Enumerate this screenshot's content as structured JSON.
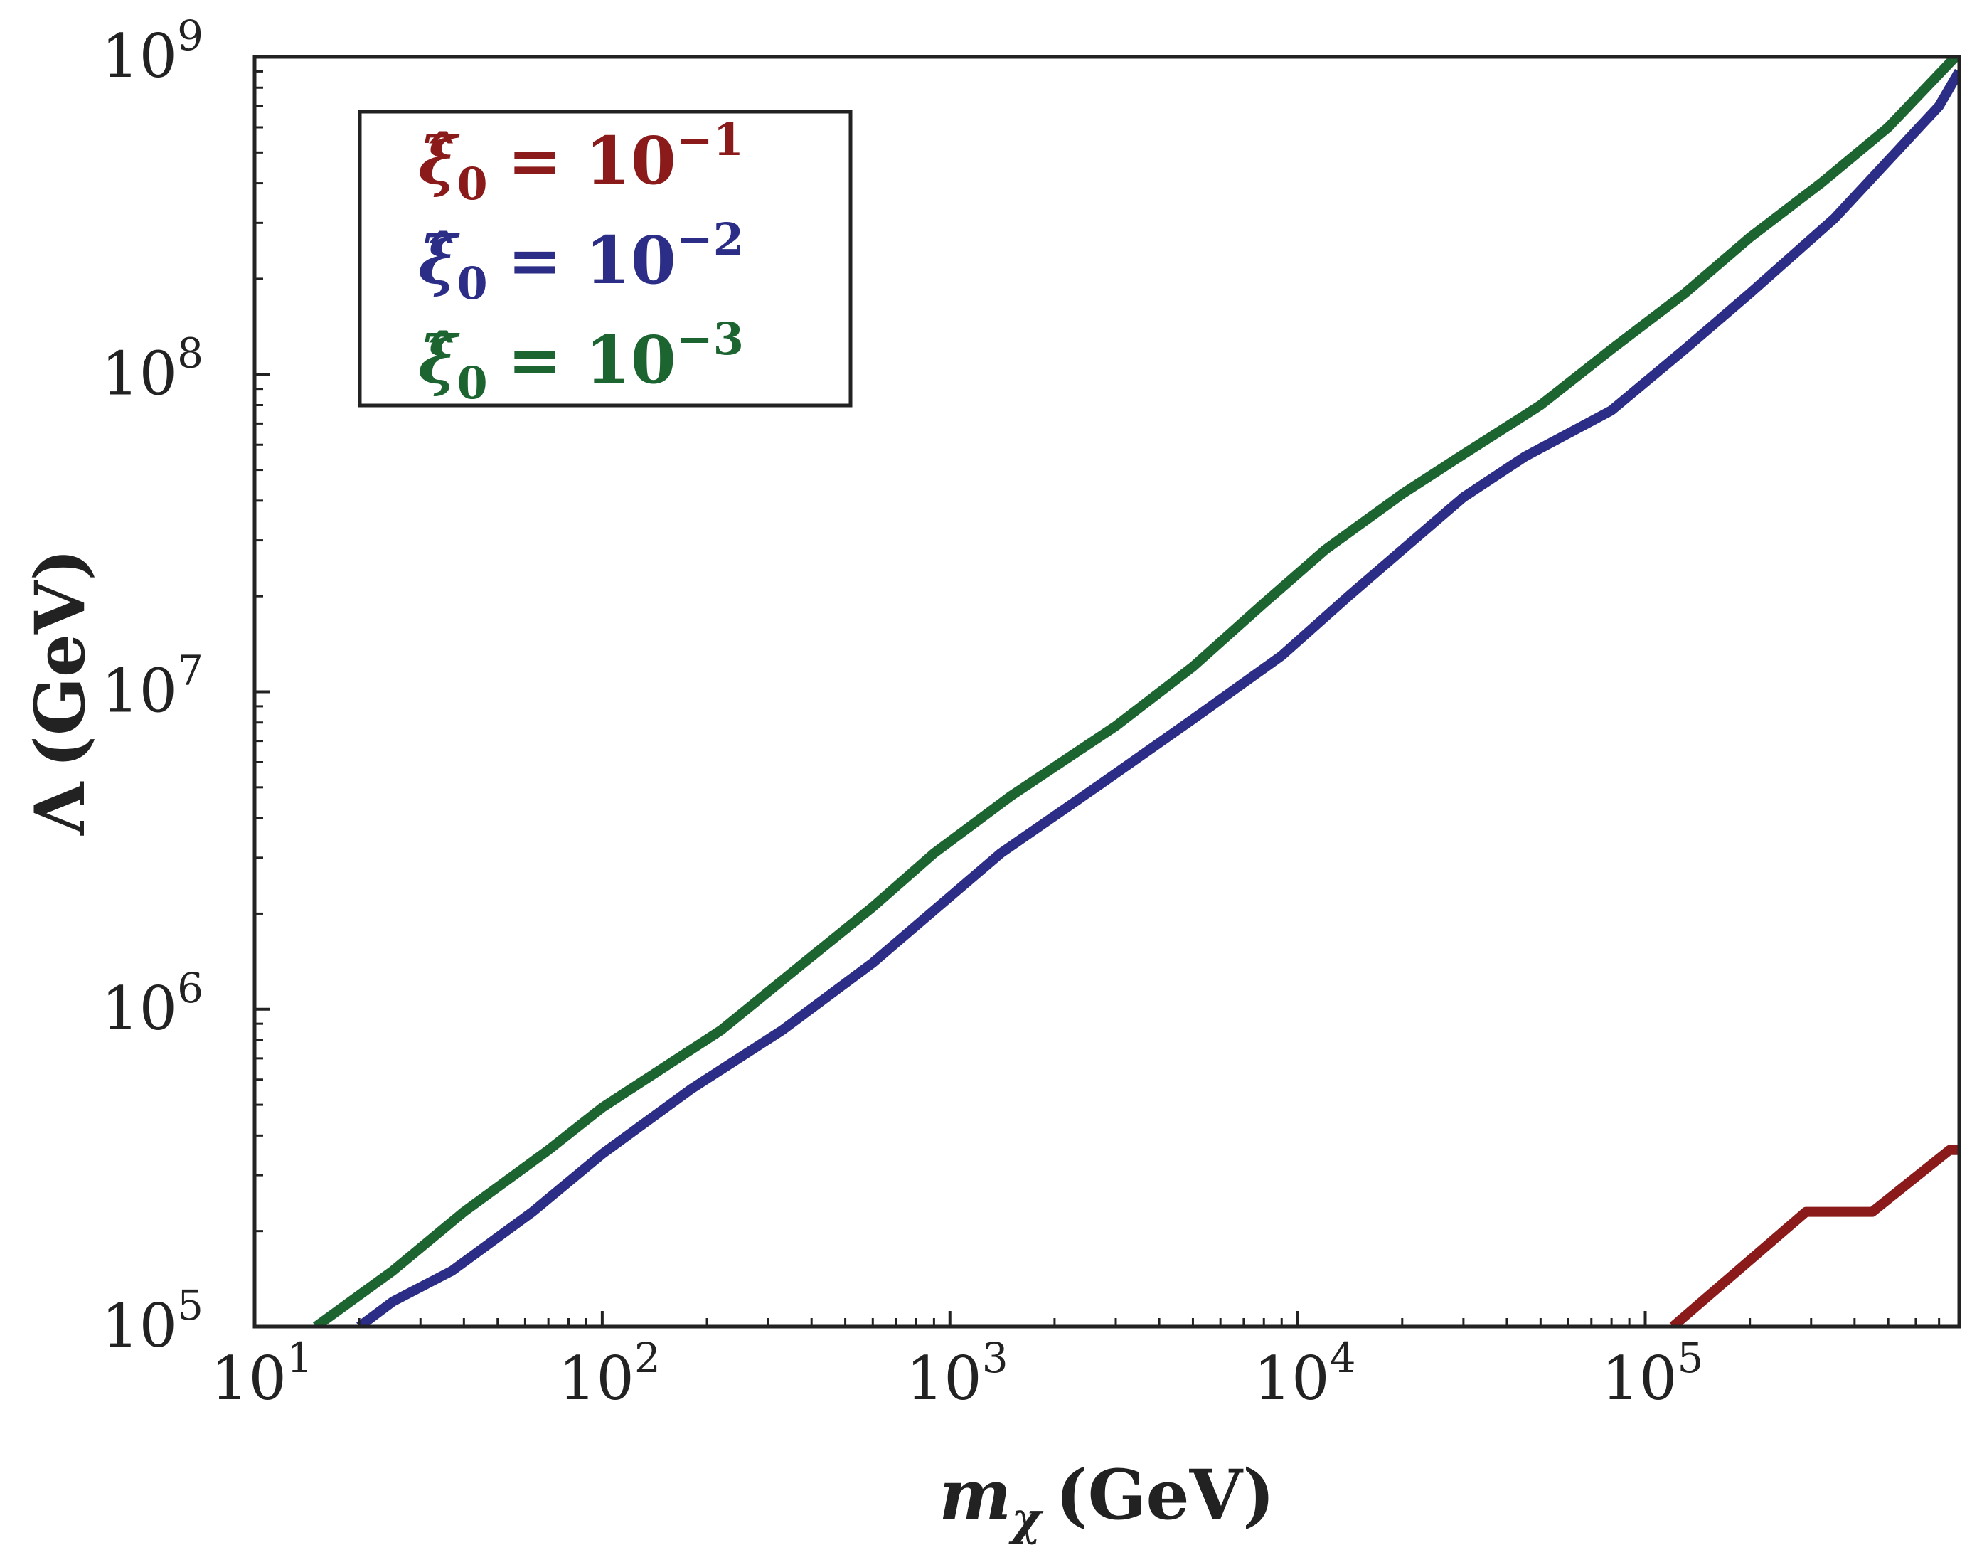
{
  "chart_data": {
    "type": "line",
    "xscale": "log",
    "yscale": "log",
    "xlim": [
      10,
      800000
    ],
    "ylim": [
      100000,
      1000000000
    ],
    "xlabel": {
      "var": "m",
      "sub": "χ",
      "unit": "(GeV)"
    },
    "ylabel": {
      "var": "Λ",
      "unit": "(GeV)"
    },
    "x_ticks": [
      {
        "base": "10",
        "exp": "1",
        "value": 10
      },
      {
        "base": "10",
        "exp": "2",
        "value": 100
      },
      {
        "base": "10",
        "exp": "3",
        "value": 1000
      },
      {
        "base": "10",
        "exp": "4",
        "value": 10000
      },
      {
        "base": "10",
        "exp": "5",
        "value": 100000
      }
    ],
    "y_ticks": [
      {
        "base": "10",
        "exp": "5",
        "value": 100000
      },
      {
        "base": "10",
        "exp": "6",
        "value": 1000000
      },
      {
        "base": "10",
        "exp": "7",
        "value": 10000000
      },
      {
        "base": "10",
        "exp": "8",
        "value": 100000000
      },
      {
        "base": "10",
        "exp": "9",
        "value": 1000000000
      }
    ],
    "legend_position": "top-left",
    "series": [
      {
        "name": "xi0_1e-1",
        "label": {
          "symbol": "ξ̂",
          "sub": "0",
          "rel": "= 10",
          "exp": "−1"
        },
        "color": "#8b1a1a",
        "x": [
          120000,
          290000,
          450000,
          750000,
          800000
        ],
        "y": [
          100000,
          230000,
          230000,
          360000,
          360000
        ]
      },
      {
        "name": "xi0_1e-2",
        "label": {
          "symbol": "ξ̂",
          "sub": "0",
          "rel": "= 10",
          "exp": "−2"
        },
        "color": "#2b2d86",
        "x": [
          20,
          25,
          37,
          63,
          100,
          180,
          330,
          600,
          1400,
          2700,
          5000,
          9000,
          14000,
          20000,
          30000,
          45000,
          80000,
          130000,
          200000,
          350000,
          700000,
          800000
        ],
        "y": [
          100000,
          120000,
          150000,
          230000,
          350000,
          560000,
          860000,
          1400000,
          3100000,
          5100000,
          8200000,
          13000000,
          20000000,
          28000000,
          41000000,
          55000000,
          77000000,
          120000000,
          180000000,
          310000000,
          700000000,
          900000000
        ]
      },
      {
        "name": "xi0_1e-3",
        "label": {
          "symbol": "ξ̂",
          "sub": "0",
          "rel": "= 10",
          "exp": "−3"
        },
        "color": "#1c6531",
        "x": [
          15,
          25,
          40,
          70,
          100,
          220,
          380,
          600,
          900,
          1500,
          3000,
          5000,
          8000,
          12000,
          20000,
          30000,
          50000,
          80000,
          130000,
          200000,
          320000,
          500000,
          780000
        ],
        "y": [
          100000,
          150000,
          230000,
          360000,
          490000,
          860000,
          1400000,
          2100000,
          3100000,
          4700000,
          7800000,
          12000000,
          19000000,
          28000000,
          42000000,
          56000000,
          80000000,
          120000000,
          180000000,
          270000000,
          400000000,
          600000000,
          1000000000
        ]
      }
    ]
  }
}
